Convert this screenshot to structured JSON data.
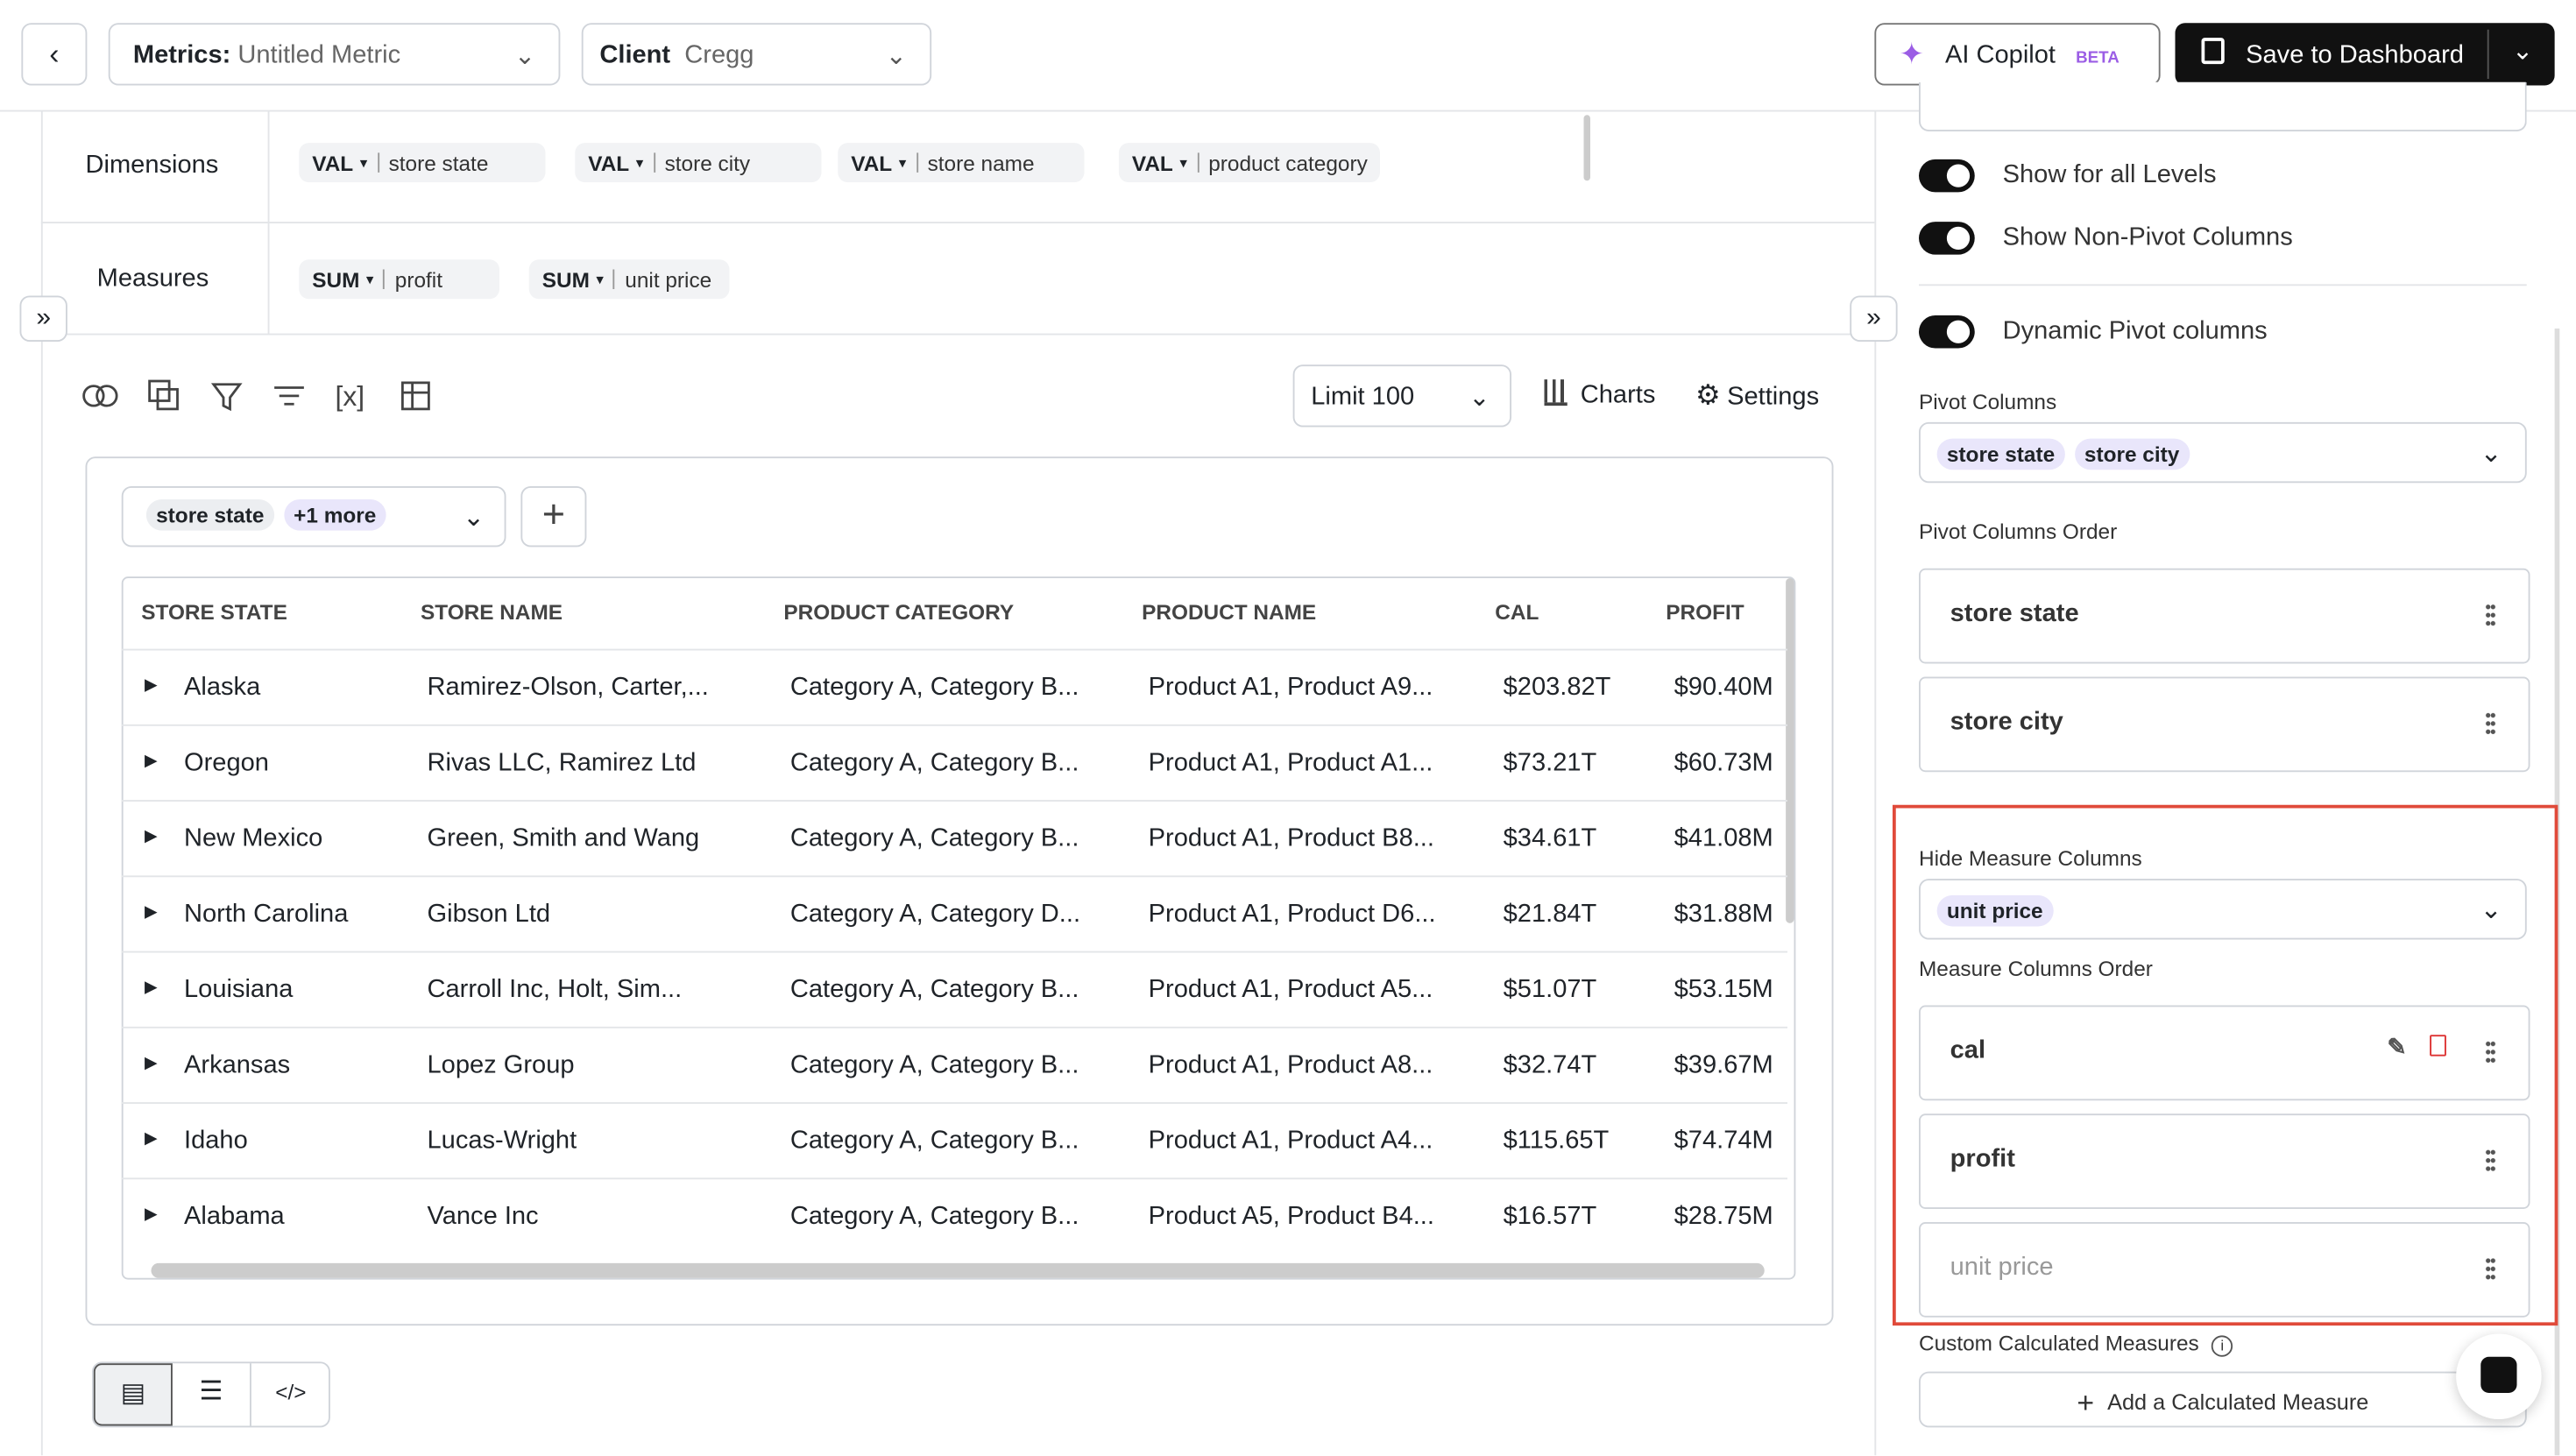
{
  "header": {
    "metrics_label": "Metrics:",
    "metrics_value": "Untitled Metric",
    "client_label": "Client",
    "client_value": "Cregg",
    "copilot": "AI Copilot",
    "beta": "BETA",
    "save": "Save to Dashboard"
  },
  "dimensions": {
    "label": "Dimensions",
    "chips": [
      {
        "agg": "VAL",
        "name": "store state"
      },
      {
        "agg": "VAL",
        "name": "store city"
      },
      {
        "agg": "VAL",
        "name": "store name"
      },
      {
        "agg": "VAL",
        "name": "product category"
      }
    ]
  },
  "measures": {
    "label": "Measures",
    "chips": [
      {
        "agg": "SUM",
        "name": "profit"
      },
      {
        "agg": "SUM",
        "name": "unit price"
      }
    ]
  },
  "toolbar": {
    "limit": "Limit 100",
    "charts": "Charts",
    "settings": "Settings"
  },
  "filter": {
    "chip": "store state",
    "more": "+1 more"
  },
  "table": {
    "columns": [
      "STORE STATE",
      "STORE NAME",
      "PRODUCT CATEGORY",
      "PRODUCT NAME",
      "CAL",
      "PROFIT"
    ],
    "rows": [
      [
        "Alaska",
        "Ramirez-Olson, Carter,...",
        "Category A, Category B...",
        "Product A1, Product A9...",
        "$203.82T",
        "$90.40M"
      ],
      [
        "Oregon",
        "Rivas LLC, Ramirez Ltd",
        "Category A, Category B...",
        "Product A1, Product A1...",
        "$73.21T",
        "$60.73M"
      ],
      [
        "New Mexico",
        "Green, Smith and Wang",
        "Category A, Category B...",
        "Product A1, Product B8...",
        "$34.61T",
        "$41.08M"
      ],
      [
        "North Carolina",
        "Gibson Ltd",
        "Category A, Category D...",
        "Product A1, Product D6...",
        "$21.84T",
        "$31.88M"
      ],
      [
        "Louisiana",
        "Carroll Inc, Holt, Sim...",
        "Category A, Category B...",
        "Product A1, Product A5...",
        "$51.07T",
        "$53.15M"
      ],
      [
        "Arkansas",
        "Lopez Group",
        "Category A, Category B...",
        "Product A1, Product A8...",
        "$32.74T",
        "$39.67M"
      ],
      [
        "Idaho",
        "Lucas-Wright",
        "Category A, Category B...",
        "Product A1, Product A4...",
        "$115.65T",
        "$74.74M"
      ],
      [
        "Alabama",
        "Vance Inc",
        "Category A, Category B...",
        "Product A5, Product B4...",
        "$16.57T",
        "$28.75M"
      ]
    ]
  },
  "panel": {
    "toggles": [
      "Show for all Levels",
      "Show Non-Pivot Columns",
      "Dynamic Pivot columns"
    ],
    "pivot_columns_label": "Pivot Columns",
    "pivot_columns": [
      "store state",
      "store city"
    ],
    "pivot_order_label": "Pivot Columns Order",
    "pivot_order": [
      "store state",
      "store city"
    ],
    "hide_measure_label": "Hide Measure Columns",
    "hide_measure": [
      "unit price"
    ],
    "measure_order_label": "Measure Columns Order",
    "measure_order": [
      "cal",
      "profit",
      "unit price"
    ],
    "custom_label": "Custom Calculated Measures",
    "add_button": "Add a Calculated Measure"
  }
}
